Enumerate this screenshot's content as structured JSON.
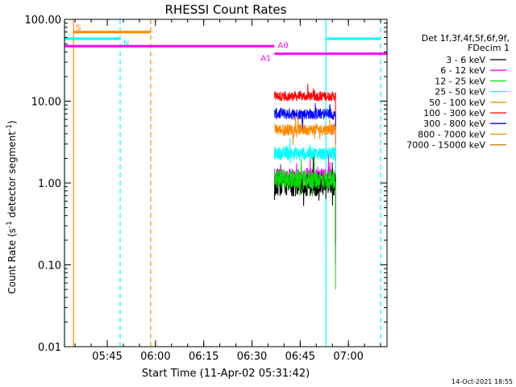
{
  "chart_data": {
    "type": "line",
    "title": "RHESSI Count Rates",
    "xlabel": "Start Time (11-Apr-02 05:31:42)",
    "ylabel_main": "Count Rate (s",
    "ylabel_sup1": "-1",
    "ylabel_mid": " detector segment",
    "ylabel_sup2": "-1",
    "ylabel_end": ")",
    "y_scale": "log",
    "xlim": [
      "05:31:42",
      "07:12:00"
    ],
    "ylim": [
      0.01,
      100
    ],
    "x_ticks": [
      {
        "t": "05:45",
        "label": "05:45"
      },
      {
        "t": "06:00",
        "label": "06:00"
      },
      {
        "t": "06:15",
        "label": "06:15"
      },
      {
        "t": "06:30",
        "label": "06:30"
      },
      {
        "t": "06:45",
        "label": "06:45"
      },
      {
        "t": "07:00",
        "label": "07:00"
      }
    ],
    "y_ticks": [
      {
        "v": 0.01,
        "label": "0.01"
      },
      {
        "v": 0.1,
        "label": "0.10"
      },
      {
        "v": 1,
        "label": "1.00"
      },
      {
        "v": 10,
        "label": "10.00"
      },
      {
        "v": 100,
        "label": "100.00"
      }
    ],
    "legend": {
      "placement": "right",
      "header": [
        "Det 1f,3f,4f,5f,6f,9f,",
        "FDecim 1"
      ],
      "entries": [
        {
          "label": "3 - 6 keV",
          "color": "#000000"
        },
        {
          "label": "6 - 12 keV",
          "color": "#ff00ff"
        },
        {
          "label": "12 - 25 keV",
          "color": "#00e000"
        },
        {
          "label": "25 - 50 keV",
          "color": "#00ffff"
        },
        {
          "label": "50 - 100 keV",
          "color": "#ff8800"
        },
        {
          "label": "100 - 300 keV",
          "color": "#ff0000"
        },
        {
          "label": "300 - 800 keV",
          "color": "#0000ff"
        },
        {
          "label": "800 - 7000 keV",
          "color": "#ff8800"
        },
        {
          "label": "7000 - 15000 keV",
          "color": "#cc7700"
        }
      ]
    },
    "series": [
      {
        "color": "#ff0000",
        "start": "06:37:00",
        "end": "06:56:00",
        "level": 11.5,
        "noise": 0.06,
        "end_value": 5.0
      },
      {
        "color": "#0000ff",
        "start": "06:37:00",
        "end": "06:56:00",
        "level": 7.0,
        "noise": 0.07,
        "end_value": 3.0
      },
      {
        "color": "#ff8800",
        "start": "06:37:00",
        "end": "06:56:00",
        "level": 4.5,
        "noise": 0.07,
        "end_value": 0.3
      },
      {
        "color": "#00ffff",
        "start": "06:37:00",
        "end": "06:56:00",
        "level": 2.3,
        "noise": 0.08,
        "end_value": 0.15
      },
      {
        "color": "#ff00ff",
        "start": "06:37:00",
        "end": "06:56:00",
        "level": 1.2,
        "noise": 0.1,
        "end_value": 0.1
      },
      {
        "color": "#000000",
        "start": "06:37:00",
        "end": "06:56:00",
        "level": 0.95,
        "noise": 0.14,
        "end_value": 0.18
      },
      {
        "color": "#00e000",
        "start": "06:37:00",
        "end": "06:56:00",
        "level": 1.1,
        "noise": 0.12,
        "end_value": 0.05
      }
    ],
    "vertical_lines": [
      {
        "t": "05:31:42",
        "color": "#00ffff",
        "style": "solid"
      },
      {
        "t": "05:34:30",
        "color": "#ff8800",
        "style": "solid"
      },
      {
        "t": "05:49:00",
        "color": "#00ffff",
        "style": "dashed"
      },
      {
        "t": "05:58:30",
        "color": "#ff8800",
        "style": "dashed"
      },
      {
        "t": "06:53:00",
        "color": "#00ffff",
        "style": "solid"
      },
      {
        "t": "07:10:00",
        "color": "#00ffff",
        "style": "dashed"
      }
    ],
    "attenuator_bars": [
      {
        "label": "S",
        "color": "#ff8800",
        "start": "05:34:30",
        "end": "05:58:30",
        "y": 70
      },
      {
        "label": "N",
        "color": "#00ffff",
        "start": "05:31:42",
        "end": "05:49:00",
        "y": 58
      },
      {
        "label": "N",
        "color": "#00ffff",
        "start": "06:53:00",
        "end": "07:10:00",
        "y": 58
      },
      {
        "label": "A0",
        "color": "#ff00ff",
        "start": "05:31:42",
        "end": "06:37:00",
        "y": 47
      },
      {
        "label": "A1",
        "color": "#ff00ff",
        "start": "06:37:00",
        "end": "07:12:00",
        "y": 38
      }
    ],
    "footer_timestamp": "14-Oct-2021 18:55"
  }
}
